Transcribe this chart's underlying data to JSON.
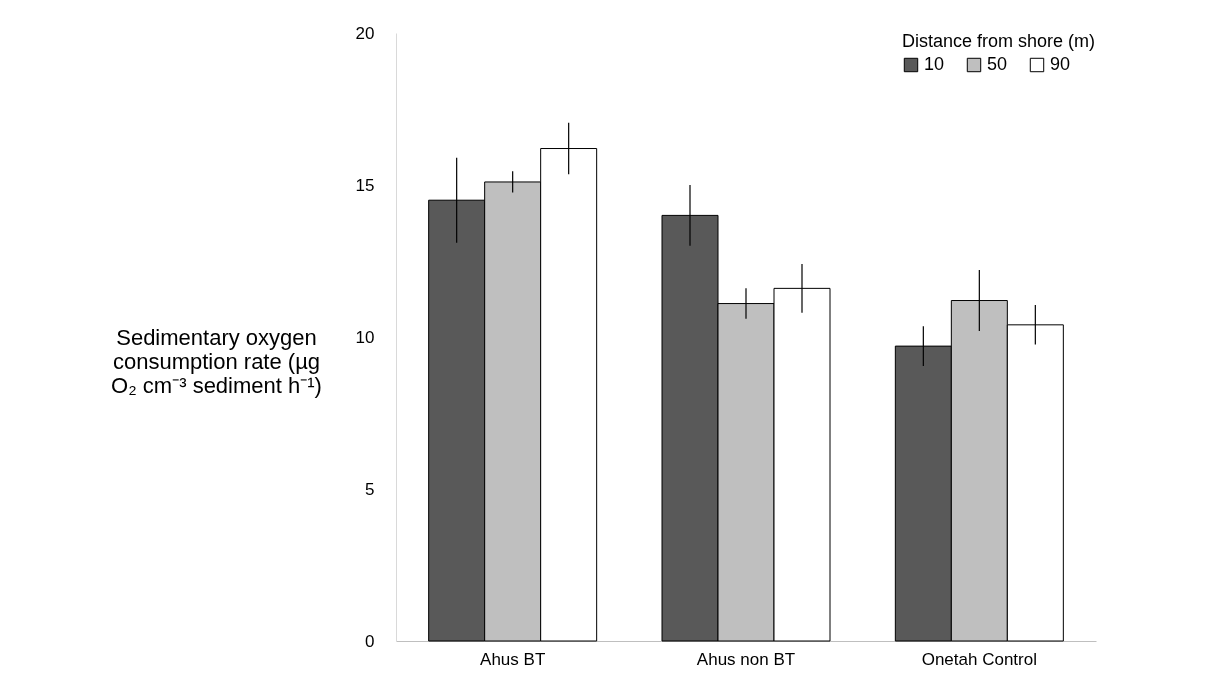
{
  "chart_data": {
    "type": "bar",
    "ylabel": "Sedimentary oxygen consumption rate (µg O₂ cm⁻³ sediment h⁻¹)",
    "legend_title": "Distance from shore (m)",
    "categories": [
      "Ahus BT",
      "Ahus non BT",
      "Onetah Control"
    ],
    "series": [
      {
        "name": "10",
        "color": "#595959",
        "values": [
          14.5,
          14.0,
          9.7
        ],
        "errors": [
          1.4,
          1.0,
          0.65
        ]
      },
      {
        "name": "50",
        "color": "#bfbfbf",
        "values": [
          15.1,
          11.1,
          11.2
        ],
        "errors": [
          0.35,
          0.5,
          1.0
        ]
      },
      {
        "name": "90",
        "color": "#ffffff",
        "values": [
          16.2,
          11.6,
          10.4
        ],
        "errors": [
          0.85,
          0.8,
          0.65
        ]
      }
    ],
    "ylim": [
      0,
      20
    ],
    "yticks": [
      0,
      5,
      10,
      15,
      20
    ],
    "grid": false,
    "legend": "top right"
  }
}
